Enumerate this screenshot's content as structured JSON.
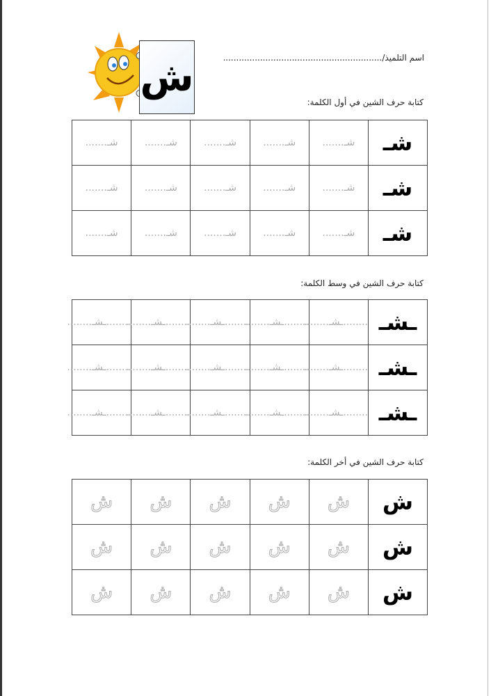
{
  "header": {
    "card_letter": "ش",
    "student_name_label": "اسم التلميذ/",
    "student_name_value": "......................................................................................................................"
  },
  "sections": [
    {
      "title": "كتابة حرف الشين في أول الكلمة:",
      "model": "شـ",
      "trace": "شـ.......",
      "rows": 3,
      "cols": 5
    },
    {
      "title": "كتابة حرف الشين في وسط الكلمة:",
      "model": "ـشـ",
      "trace": "........ـشـ........",
      "rows": 3,
      "cols": 5
    },
    {
      "title": "كتابة حرف الشين في أخر الكلمة:",
      "model": "ش",
      "trace": "ش",
      "rows": 3,
      "cols": 5
    }
  ],
  "colors": {
    "sun": "#f7c51e",
    "sun_rays": "#f39c12",
    "card_bg": "#e6f0fb",
    "trace": "#aaaaaa"
  }
}
